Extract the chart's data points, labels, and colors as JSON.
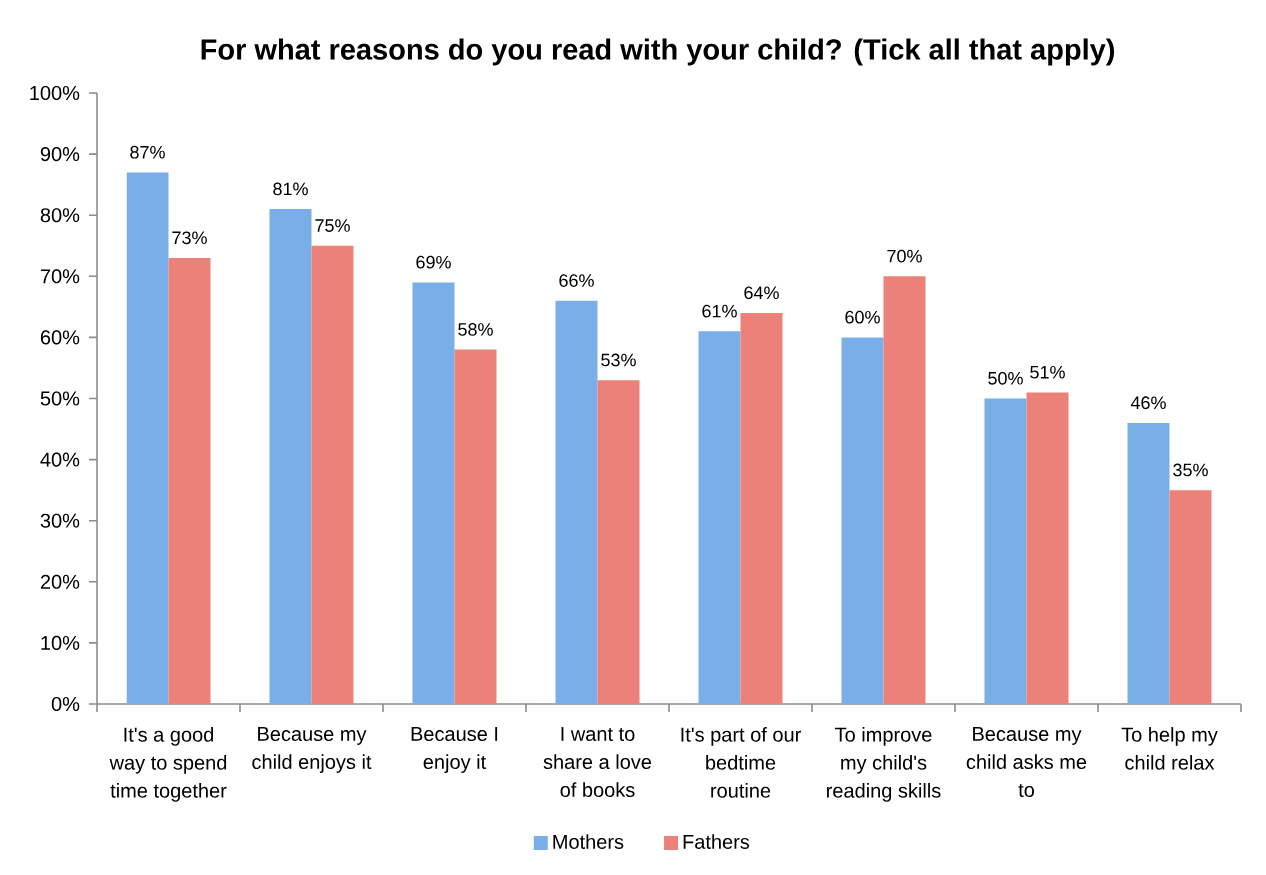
{
  "chart_data": {
    "type": "bar",
    "title": "For what reasons do you read with your child?  (Tick all that apply)",
    "categories": [
      "It's a good way to spend time together",
      "Because my child enjoys it",
      "Because I enjoy it",
      "I want to share a love of books",
      "It's part of our bedtime routine",
      "To improve my child's reading skills",
      "Because my child asks me to",
      "To help my child relax"
    ],
    "series": [
      {
        "name": "Mothers",
        "color": "#7aaee9",
        "values": [
          87,
          81,
          69,
          66,
          61,
          60,
          50,
          46
        ],
        "value_labels": [
          "87%",
          "81%",
          "69%",
          "66%",
          "61%",
          "60%",
          "50%",
          "46%"
        ]
      },
      {
        "name": "Fathers",
        "color": "#ec8179",
        "values": [
          73,
          75,
          58,
          53,
          64,
          70,
          51,
          35
        ],
        "value_labels": [
          "73%",
          "75%",
          "58%",
          "53%",
          "64%",
          "70%",
          "51%",
          "35%"
        ]
      }
    ],
    "ylim": [
      0,
      100
    ],
    "yticks": [
      {
        "value": 0,
        "label": "0%"
      },
      {
        "value": 10,
        "label": "10%"
      },
      {
        "value": 20,
        "label": "20%"
      },
      {
        "value": 30,
        "label": "30%"
      },
      {
        "value": 40,
        "label": "40%"
      },
      {
        "value": 50,
        "label": "50%"
      },
      {
        "value": 60,
        "label": "60%"
      },
      {
        "value": 70,
        "label": "70%"
      },
      {
        "value": 80,
        "label": "80%"
      },
      {
        "value": 90,
        "label": "90%"
      },
      {
        "value": 100,
        "label": "100%"
      }
    ],
    "grid": false,
    "legend": "bottom"
  }
}
